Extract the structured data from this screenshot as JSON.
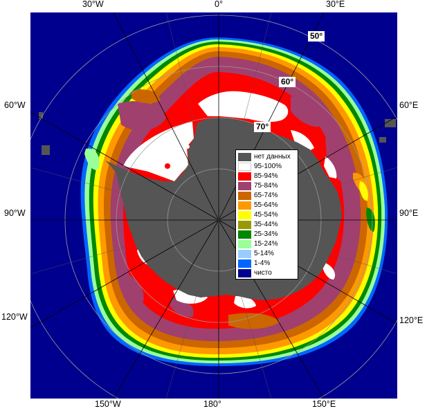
{
  "map": {
    "labels_top": [
      "30°W",
      "0°",
      "30°E"
    ],
    "labels_left": [
      "60°W",
      "90°W",
      "120°W"
    ],
    "labels_right": [
      "60°E",
      "90°E",
      "120°E"
    ],
    "labels_bottom": [
      "150°W",
      "180°",
      "150°E"
    ],
    "lat_labels": [
      "50°",
      "60°",
      "70°"
    ],
    "colors": {
      "ocean": "#00008f",
      "land": "#555555",
      "ice_100": "#ffffff",
      "ice_85": "#ff0000",
      "ice_75": "#a0406e",
      "ice_65": "#cc6600",
      "ice_55": "#ff9900",
      "ice_45": "#ffff00",
      "ice_35": "#999900",
      "ice_25": "#008800",
      "ice_15": "#99ff99",
      "ice_5": "#99ccff",
      "ice_1": "#0066ff"
    }
  },
  "legend": {
    "items": [
      {
        "label": "нет данных",
        "color": "#555555"
      },
      {
        "label": "95-100%",
        "color": "#ffffff"
      },
      {
        "label": "85-94%",
        "color": "#ff0000"
      },
      {
        "label": "75-84%",
        "color": "#a0406e"
      },
      {
        "label": "65-74%",
        "color": "#cc6600"
      },
      {
        "label": "55-64%",
        "color": "#ff9900"
      },
      {
        "label": "45-54%",
        "color": "#ffff00"
      },
      {
        "label": "35-44%",
        "color": "#999900"
      },
      {
        "label": "25-34%",
        "color": "#008800"
      },
      {
        "label": "15-24%",
        "color": "#99ff99"
      },
      {
        "label": "5-14%",
        "color": "#99ccff"
      },
      {
        "label": "1-4%",
        "color": "#0066ff"
      },
      {
        "label": "чисто",
        "color": "#00008f"
      }
    ]
  }
}
